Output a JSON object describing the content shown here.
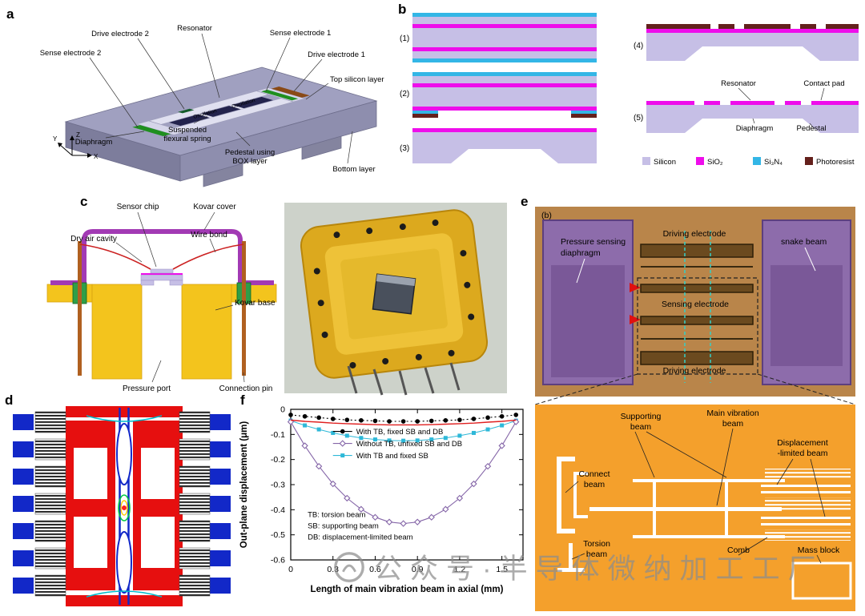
{
  "figure": {
    "watermark": "公众号·半导体微纳加工工厂"
  },
  "panels": {
    "a": {
      "letter": "a",
      "labels": {
        "drive_electrode_2": "Drive electrode 2",
        "resonator": "Resonator",
        "sense_electrode_1": "Sense electrode 1",
        "sense_electrode_2": "Sense electrode 2",
        "drive_electrode_1": "Drive electrode 1",
        "top_silicon_layer": "Top silicon layer",
        "oscillation_1": "Oscillation",
        "oscillation_2": "Oscillation",
        "suspended_line1": "Suspended",
        "suspended_line2": "flexural spring",
        "diaphragm": "Diaphragm",
        "pedestal_line1": "Pedestal using",
        "pedestal_line2": "BOX layer",
        "bottom_layer": "Bottom layer",
        "axis_x": "X",
        "axis_y": "Y",
        "axis_z": "Z"
      }
    },
    "b": {
      "letter": "b",
      "steps": [
        "(1)",
        "(2)",
        "(3)",
        "(4)",
        "(5)"
      ],
      "labels": {
        "resonator": "Resonator",
        "contact_pad": "Contact pad",
        "diaphragm": "Diaphragm",
        "pedestal": "Pedestal"
      },
      "legend": [
        {
          "name": "Silicon",
          "color": "#c6bfe6"
        },
        {
          "name": "SiO₂",
          "color": "#ee0deb"
        },
        {
          "name": "Si₃N₄",
          "color": "#33b6e6"
        },
        {
          "name": "Photoresist",
          "color": "#64201c"
        }
      ]
    },
    "c": {
      "letter": "c",
      "labels": {
        "sensor_chip": "Sensor chip",
        "kovar_cover": "Kovar cover",
        "dry_air_cavity": "Dry air cavity",
        "wire_bond": "Wire bond",
        "kovar_base": "Kovar base",
        "pressure_port": "Pressure port",
        "connection_pin": "Connection pin"
      }
    },
    "d": {
      "letter": "d"
    },
    "e": {
      "letter": "e",
      "sub_letter": "(b)",
      "labels": {
        "pressure_sensing_line1": "Pressure sensing",
        "pressure_sensing_line2": "diaphragm",
        "driving_electrode_top": "Driving electrode",
        "snake_beam": "snake beam",
        "sensing_electrode": "Sensing electrode",
        "driving_electrode_bottom": "Driving electrode",
        "supporting_line1": "Supporting",
        "supporting_line2": "beam",
        "main_vibration_line1": "Main vibration",
        "main_vibration_line2": "beam",
        "displacement_line1": "Displacement",
        "displacement_line2": "-limited beam",
        "connect_line1": "Connect",
        "connect_line2": "beam",
        "torsion_line1": "Torsion",
        "torsion_line2": "beam",
        "comb": "Comb",
        "mass_block": "Mass block"
      }
    },
    "f": {
      "letter": "f"
    }
  },
  "chart_data": {
    "type": "line",
    "title": "",
    "xlabel": "Length of main vibration beam in axial (mm)",
    "ylabel": "Out-plane displacement (μm)",
    "xlim": [
      0,
      1.65
    ],
    "ylim": [
      -0.6,
      0
    ],
    "xticks": [
      0,
      0.3,
      0.6,
      0.9,
      1.2,
      1.5
    ],
    "yticks": [
      0,
      -0.1,
      -0.2,
      -0.3,
      -0.4,
      -0.5,
      -0.6
    ],
    "grid": false,
    "legend_position": "upper-middle-inside",
    "x": [
      0,
      0.1,
      0.2,
      0.3,
      0.4,
      0.5,
      0.6,
      0.7,
      0.8,
      0.9,
      1.0,
      1.1,
      1.2,
      1.3,
      1.4,
      1.5,
      1.6
    ],
    "series": [
      {
        "name": "With TB, fixed SB and DB",
        "color": "#000000",
        "marker": "circle",
        "dash": "2,3",
        "line_width": 1.1,
        "y": [
          -0.022,
          -0.028,
          -0.033,
          -0.038,
          -0.042,
          -0.044,
          -0.046,
          -0.048,
          -0.048,
          -0.048,
          -0.046,
          -0.044,
          -0.042,
          -0.038,
          -0.033,
          -0.028,
          -0.022
        ]
      },
      {
        "name": "",
        "in_legend": false,
        "color": "#e02020",
        "marker": "none",
        "line_width": 1.4,
        "y": [
          -0.043,
          -0.048,
          -0.051,
          -0.055,
          -0.057,
          -0.059,
          -0.061,
          -0.062,
          -0.062,
          -0.062,
          -0.061,
          -0.059,
          -0.057,
          -0.055,
          -0.051,
          -0.048,
          -0.043
        ]
      },
      {
        "name": "Without TB, unfixed SB and DB",
        "color": "#8566a8",
        "marker": "diamond",
        "line_width": 1.1,
        "y": [
          -0.05,
          -0.145,
          -0.227,
          -0.297,
          -0.354,
          -0.398,
          -0.43,
          -0.449,
          -0.455,
          -0.449,
          -0.43,
          -0.398,
          -0.354,
          -0.297,
          -0.227,
          -0.145,
          -0.05
        ]
      },
      {
        "name": "With TB and fixed SB",
        "color": "#2eb8d8",
        "marker": "square",
        "line_width": 1.0,
        "y": [
          -0.045,
          -0.064,
          -0.08,
          -0.094,
          -0.105,
          -0.114,
          -0.12,
          -0.124,
          -0.125,
          -0.124,
          -0.12,
          -0.114,
          -0.105,
          -0.094,
          -0.08,
          -0.064,
          -0.045
        ]
      }
    ],
    "annotations": [
      "TB: torsion beam",
      "SB: supporting beam",
      "DB: displacement-limited beam"
    ]
  }
}
